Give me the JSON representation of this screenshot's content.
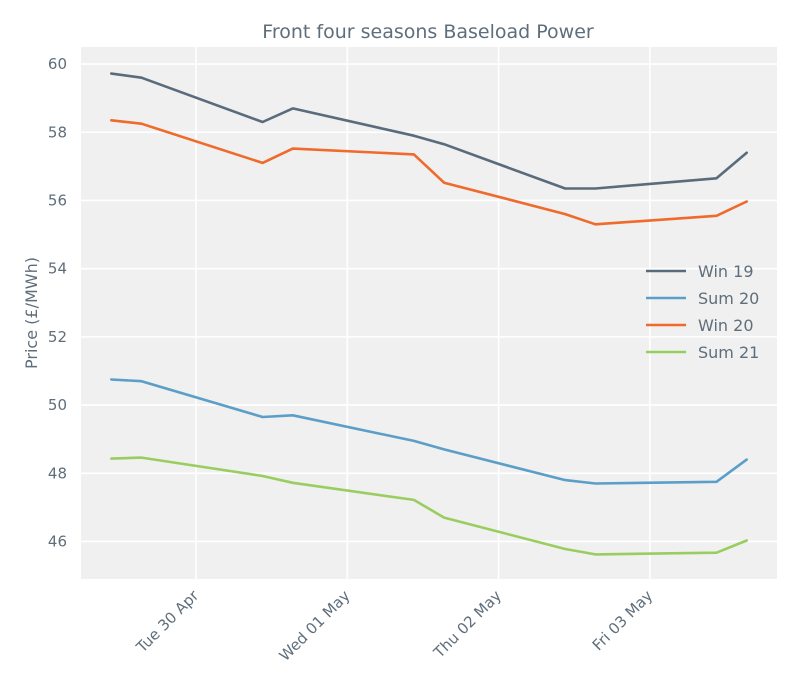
{
  "chart_data": {
    "type": "line",
    "title": "Front four seasons Baseload Power",
    "xlabel": "",
    "ylabel": "Price (£/MWh)",
    "ylim": [
      44.9,
      60.5
    ],
    "yticks": [
      46,
      48,
      50,
      52,
      54,
      56,
      58,
      60
    ],
    "xlim": [
      0,
      23
    ],
    "xticks": [
      {
        "x": 3.8,
        "label": "Tue 30 Apr"
      },
      {
        "x": 8.8,
        "label": "Wed 01 May"
      },
      {
        "x": 13.8,
        "label": "Thu 02 May"
      },
      {
        "x": 18.8,
        "label": "Fri 03 May"
      }
    ],
    "grid": true,
    "legend_position": "center-right",
    "x": [
      1,
      2,
      6,
      7,
      11,
      12,
      16,
      17,
      21,
      22
    ],
    "series": [
      {
        "name": "Win 19",
        "color": "#5a6b7b",
        "values": [
          59.72,
          59.6,
          58.3,
          58.7,
          57.9,
          57.65,
          56.35,
          56.35,
          56.65,
          57.4
        ]
      },
      {
        "name": "Sum 20",
        "color": "#5b9fc8",
        "values": [
          50.75,
          50.7,
          49.65,
          49.7,
          48.95,
          48.7,
          47.8,
          47.7,
          47.75,
          48.4
        ]
      },
      {
        "name": "Win 20",
        "color": "#ef6a2b",
        "values": [
          58.35,
          58.25,
          57.1,
          57.52,
          57.35,
          56.52,
          55.6,
          55.3,
          55.55,
          55.97
        ]
      },
      {
        "name": "Sum 21",
        "color": "#9acd60",
        "values": [
          48.43,
          48.46,
          47.92,
          47.72,
          47.22,
          46.7,
          45.78,
          45.62,
          45.67,
          46.03
        ]
      }
    ]
  }
}
